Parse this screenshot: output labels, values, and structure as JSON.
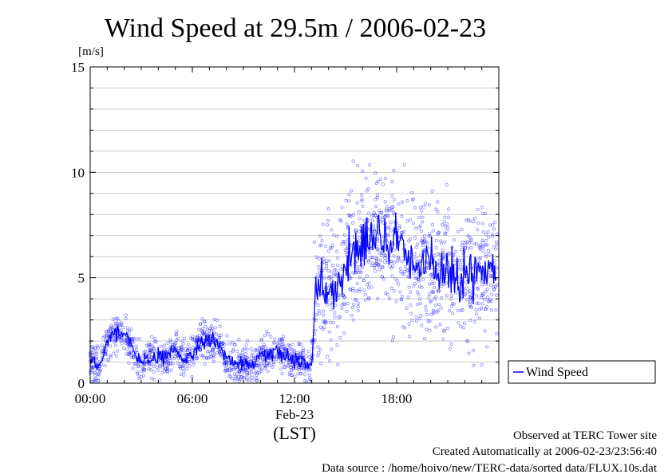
{
  "chart_data": {
    "type": "scatter",
    "title": "Wind Speed at 29.5m / 2006-02-23",
    "ylabel": "[m/s]",
    "xlabel": "(LST)",
    "date_label": "Feb-23",
    "ylim": [
      0,
      15
    ],
    "xlim_hours": [
      0,
      24
    ],
    "y_ticks": [
      "0",
      "5",
      "10",
      "15"
    ],
    "x_ticks": [
      {
        "hour": 0,
        "label": "00:00"
      },
      {
        "hour": 6,
        "label": "06:00"
      },
      {
        "hour": 12,
        "label": "12:00"
      },
      {
        "hour": 18,
        "label": "18:00"
      }
    ],
    "grid": true,
    "legend": {
      "placement": "right",
      "entries": [
        "Wind Speed"
      ]
    },
    "colors": {
      "series": "#0000ff",
      "grid": "#bdbdbd",
      "axis": "#000000"
    },
    "series": [
      {
        "name": "Wind Speed",
        "hours": [
          0.0,
          0.5,
          1.0,
          1.5,
          2.0,
          2.5,
          3.0,
          3.5,
          4.0,
          4.5,
          5.0,
          5.5,
          6.0,
          6.5,
          7.0,
          7.5,
          8.0,
          8.5,
          9.0,
          9.5,
          10.0,
          10.5,
          11.0,
          11.5,
          12.0,
          12.5,
          13.0,
          13.25,
          13.5,
          14.0,
          14.5,
          15.0,
          15.5,
          16.0,
          16.5,
          17.0,
          17.5,
          18.0,
          18.5,
          19.0,
          19.5,
          20.0,
          20.5,
          21.0,
          21.5,
          22.0,
          22.5,
          23.0,
          23.5,
          23.9
        ],
        "values": [
          1.2,
          0.7,
          1.9,
          2.5,
          2.4,
          1.6,
          0.9,
          1.1,
          1.3,
          1.2,
          1.6,
          1.2,
          1.4,
          1.9,
          2.1,
          1.9,
          1.2,
          0.9,
          1.0,
          0.8,
          1.3,
          1.4,
          1.6,
          1.2,
          1.1,
          1.0,
          0.9,
          4.2,
          4.6,
          4.5,
          4.3,
          5.8,
          6.0,
          6.8,
          6.6,
          7.2,
          6.5,
          6.8,
          6.0,
          5.5,
          5.8,
          5.6,
          5.2,
          5.4,
          4.8,
          5.2,
          5.0,
          5.5,
          5.2,
          5.8
        ]
      }
    ]
  },
  "footer": {
    "site": "Observed at TERC Tower site",
    "created": "Created Automatically at 2006-02-23/23:56:40",
    "source": "Data source : /home/hoivo/new/TERC-data/sorted  data/FLUX.10s.dat"
  }
}
